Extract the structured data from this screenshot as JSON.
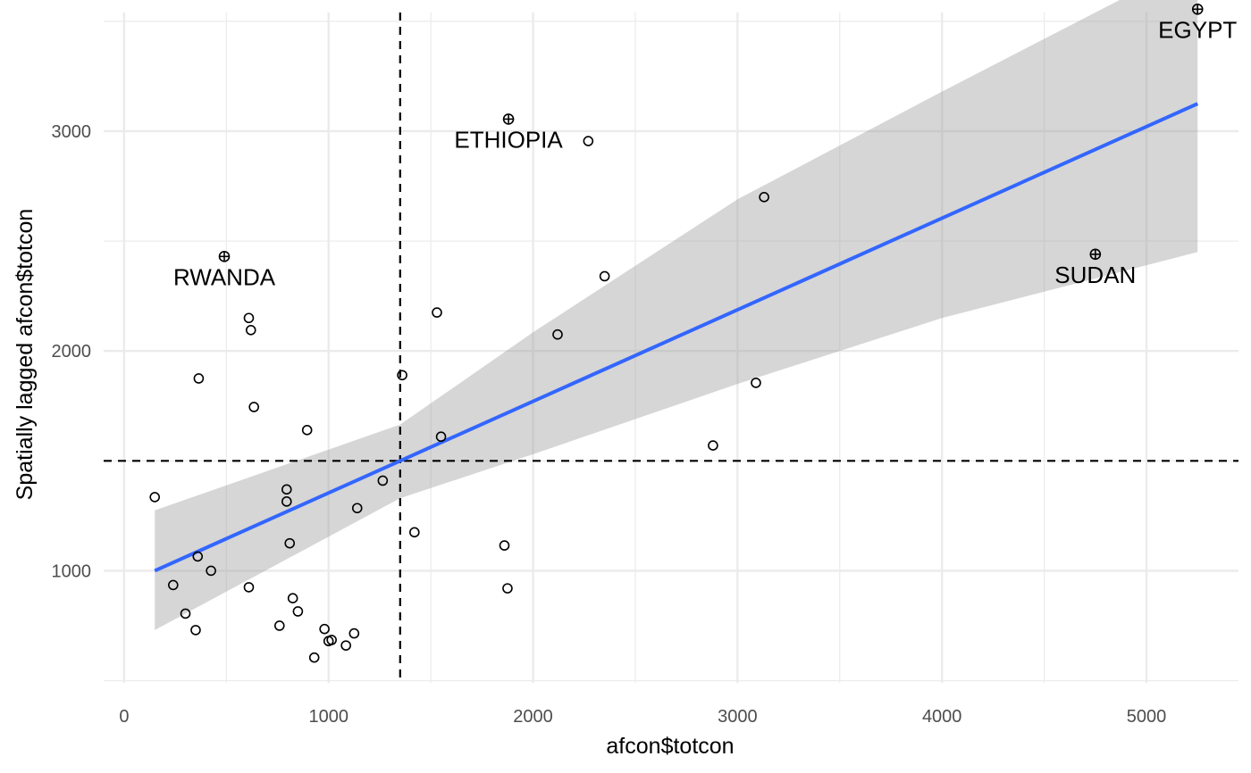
{
  "chart_data": {
    "type": "scatter",
    "title": "",
    "xlabel": "afcon$totcon",
    "ylabel": "Spatially lagged afcon$totcon",
    "xlim": [
      -100,
      5450
    ],
    "ylim": [
      490,
      3540
    ],
    "x_ticks": [
      0,
      1000,
      2000,
      3000,
      4000,
      5000
    ],
    "x_tick_labels": [
      "0",
      "1000",
      "2000",
      "3000",
      "4000",
      "5000"
    ],
    "y_ticks": [
      1000,
      2000,
      3000
    ],
    "y_tick_labels": [
      "1000",
      "2000",
      "3000"
    ],
    "grid": true,
    "colors": {
      "fit_line": "#3366FF",
      "confidence_band": "#999999",
      "points": "#000000",
      "grid": "#ebebeb"
    },
    "reference_lines": {
      "vertical_x": 1350,
      "horizontal_y": 1500,
      "style": "dashed"
    },
    "fit": {
      "method": "linear",
      "x": [
        150,
        5250
      ],
      "y": [
        1000,
        3125
      ],
      "band": [
        {
          "x": 150,
          "lo": 730,
          "hi": 1275
        },
        {
          "x": 1350,
          "lo": 1330,
          "hi": 1665
        },
        {
          "x": 2000,
          "lo": 1530,
          "hi": 2085
        },
        {
          "x": 3000,
          "lo": 1850,
          "hi": 2690
        },
        {
          "x": 4000,
          "lo": 2150,
          "hi": 3180
        },
        {
          "x": 5250,
          "lo": 2450,
          "hi": 3780
        }
      ]
    },
    "points": [
      {
        "x": 150,
        "y": 1335
      },
      {
        "x": 240,
        "y": 935
      },
      {
        "x": 300,
        "y": 805
      },
      {
        "x": 350,
        "y": 730
      },
      {
        "x": 360,
        "y": 1065
      },
      {
        "x": 365,
        "y": 1875
      },
      {
        "x": 425,
        "y": 1000
      },
      {
        "x": 610,
        "y": 925
      },
      {
        "x": 610,
        "y": 2150
      },
      {
        "x": 620,
        "y": 2095
      },
      {
        "x": 635,
        "y": 1745
      },
      {
        "x": 760,
        "y": 750
      },
      {
        "x": 795,
        "y": 1370
      },
      {
        "x": 795,
        "y": 1315
      },
      {
        "x": 810,
        "y": 1125
      },
      {
        "x": 825,
        "y": 875
      },
      {
        "x": 850,
        "y": 815
      },
      {
        "x": 895,
        "y": 1640
      },
      {
        "x": 930,
        "y": 605
      },
      {
        "x": 980,
        "y": 735
      },
      {
        "x": 1000,
        "y": 680
      },
      {
        "x": 1015,
        "y": 685
      },
      {
        "x": 1085,
        "y": 660
      },
      {
        "x": 1125,
        "y": 715
      },
      {
        "x": 1140,
        "y": 1285
      },
      {
        "x": 1265,
        "y": 1410
      },
      {
        "x": 1360,
        "y": 1890
      },
      {
        "x": 1420,
        "y": 1175
      },
      {
        "x": 1530,
        "y": 2175
      },
      {
        "x": 1550,
        "y": 1610
      },
      {
        "x": 1860,
        "y": 1115
      },
      {
        "x": 1875,
        "y": 920
      },
      {
        "x": 2120,
        "y": 2075
      },
      {
        "x": 2270,
        "y": 2955
      },
      {
        "x": 2350,
        "y": 2340
      },
      {
        "x": 2880,
        "y": 1570
      },
      {
        "x": 3090,
        "y": 1855
      },
      {
        "x": 3130,
        "y": 2700
      }
    ],
    "highlighted": [
      {
        "x": 490,
        "y": 2430,
        "label": "RWANDA"
      },
      {
        "x": 1880,
        "y": 3055,
        "label": "ETHIOPIA"
      },
      {
        "x": 4750,
        "y": 2440,
        "label": "SUDAN"
      },
      {
        "x": 5250,
        "y": 3555,
        "label": "EGYPT"
      }
    ]
  }
}
